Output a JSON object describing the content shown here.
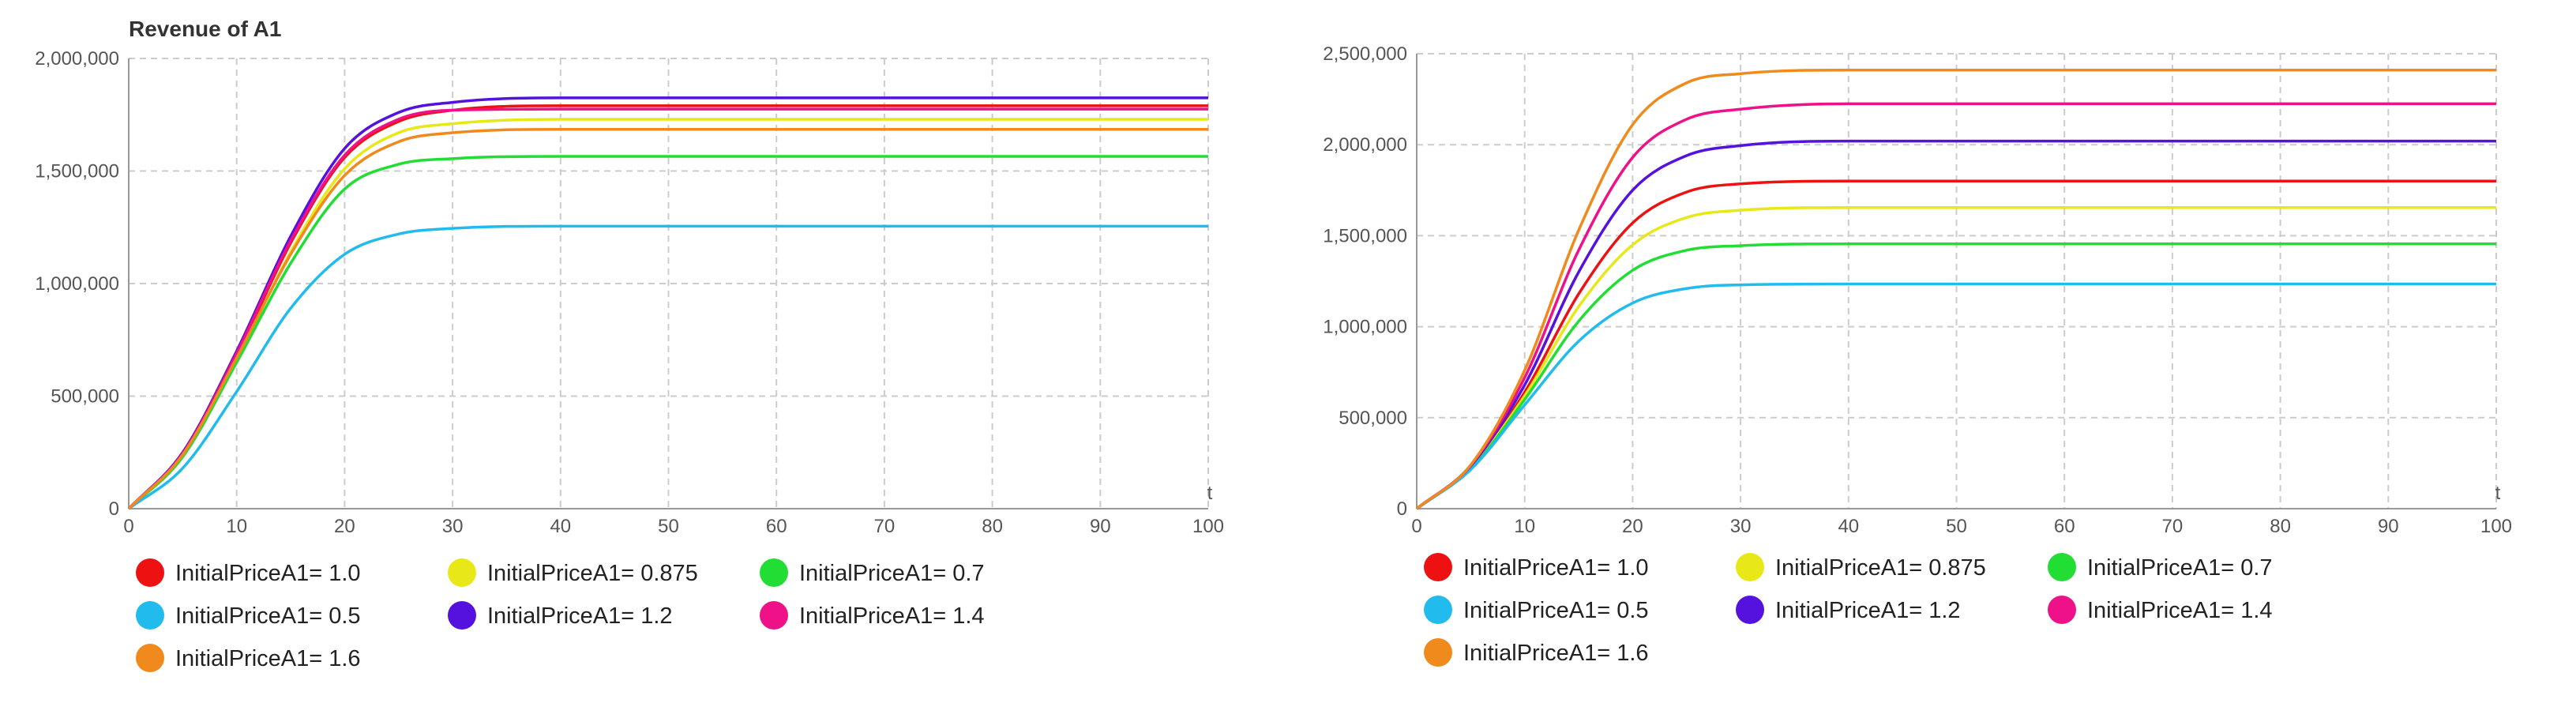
{
  "chart_data": [
    {
      "type": "line",
      "title": "Revenue of A1",
      "xlabel": "t",
      "ylabel": "",
      "xlim": [
        0,
        100
      ],
      "ylim": [
        0,
        2000000
      ],
      "x_ticks": [
        0,
        10,
        20,
        30,
        40,
        50,
        60,
        70,
        80,
        90,
        100
      ],
      "y_ticks": [
        0,
        500000,
        1000000,
        1500000,
        2000000
      ],
      "y_tick_labels": [
        "0",
        "500,000",
        "1,000,000",
        "1,500,000",
        "2,000,000"
      ],
      "grid": true,
      "legend_position": "bottom",
      "x": [
        0,
        5,
        10,
        15,
        20,
        25,
        30,
        40,
        50,
        60,
        70,
        80,
        90,
        100
      ],
      "series": [
        {
          "name": "InitialPriceA1= 1.0",
          "color": "#ee1111",
          "values": [
            0,
            240000,
            680000,
            1180000,
            1560000,
            1720000,
            1770000,
            1790000,
            1790000,
            1790000,
            1790000,
            1790000,
            1790000,
            1790000
          ]
        },
        {
          "name": "InitialPriceA1= 0.875",
          "color": "#e8e818",
          "values": [
            0,
            235000,
            660000,
            1140000,
            1510000,
            1670000,
            1710000,
            1730000,
            1730000,
            1730000,
            1730000,
            1730000,
            1730000,
            1730000
          ]
        },
        {
          "name": "InitialPriceA1= 0.7",
          "color": "#22dd33",
          "values": [
            0,
            230000,
            650000,
            1090000,
            1420000,
            1530000,
            1555000,
            1565000,
            1565000,
            1565000,
            1565000,
            1565000,
            1565000,
            1565000
          ]
        },
        {
          "name": "InitialPriceA1= 0.5",
          "color": "#22bbee",
          "values": [
            0,
            180000,
            520000,
            890000,
            1130000,
            1220000,
            1245000,
            1255000,
            1255000,
            1255000,
            1255000,
            1255000,
            1255000,
            1255000
          ]
        },
        {
          "name": "InitialPriceA1= 1.2",
          "color": "#5511dd",
          "values": [
            0,
            250000,
            700000,
            1210000,
            1600000,
            1760000,
            1805000,
            1825000,
            1825000,
            1825000,
            1825000,
            1825000,
            1825000,
            1825000
          ]
        },
        {
          "name": "InitialPriceA1= 1.4",
          "color": "#ee1188",
          "values": [
            0,
            245000,
            690000,
            1190000,
            1570000,
            1730000,
            1770000,
            1775000,
            1775000,
            1775000,
            1775000,
            1775000,
            1775000,
            1775000
          ]
        },
        {
          "name": "InitialPriceA1= 1.6",
          "color": "#f08a1c",
          "values": [
            0,
            240000,
            670000,
            1130000,
            1480000,
            1630000,
            1670000,
            1685000,
            1685000,
            1685000,
            1685000,
            1685000,
            1685000,
            1685000
          ]
        }
      ]
    },
    {
      "type": "line",
      "title": "",
      "xlabel": "t",
      "ylabel": "",
      "xlim": [
        0,
        100
      ],
      "ylim": [
        0,
        2500000
      ],
      "x_ticks": [
        0,
        10,
        20,
        30,
        40,
        50,
        60,
        70,
        80,
        90,
        100
      ],
      "y_ticks": [
        0,
        500000,
        1000000,
        1500000,
        2000000,
        2500000
      ],
      "y_tick_labels": [
        "0",
        "500,000",
        "1,000,000",
        "1,500,000",
        "2,000,000",
        "2,500,000"
      ],
      "grid": true,
      "legend_position": "bottom",
      "x": [
        0,
        5,
        10,
        15,
        20,
        25,
        30,
        40,
        50,
        60,
        70,
        80,
        90,
        100
      ],
      "series": [
        {
          "name": "InitialPriceA1= 1.0",
          "color": "#ee1111",
          "values": [
            0,
            230000,
            640000,
            1180000,
            1570000,
            1740000,
            1785000,
            1800000,
            1800000,
            1800000,
            1800000,
            1800000,
            1800000,
            1800000
          ]
        },
        {
          "name": "InitialPriceA1= 0.875",
          "color": "#e8e818",
          "values": [
            0,
            225000,
            620000,
            1110000,
            1450000,
            1600000,
            1640000,
            1655000,
            1655000,
            1655000,
            1655000,
            1655000,
            1655000,
            1655000
          ]
        },
        {
          "name": "InitialPriceA1= 0.7",
          "color": "#22dd33",
          "values": [
            0,
            220000,
            600000,
            1030000,
            1310000,
            1420000,
            1445000,
            1455000,
            1455000,
            1455000,
            1455000,
            1455000,
            1455000,
            1455000
          ]
        },
        {
          "name": "InitialPriceA1= 0.5",
          "color": "#22bbee",
          "values": [
            0,
            215000,
            570000,
            920000,
            1130000,
            1210000,
            1230000,
            1235000,
            1235000,
            1235000,
            1235000,
            1235000,
            1235000,
            1235000
          ]
        },
        {
          "name": "InitialPriceA1= 1.2",
          "color": "#5511dd",
          "values": [
            0,
            235000,
            680000,
            1300000,
            1750000,
            1940000,
            1995000,
            2020000,
            2020000,
            2020000,
            2020000,
            2020000,
            2020000,
            2020000
          ]
        },
        {
          "name": "InitialPriceA1= 1.4",
          "color": "#ee1188",
          "values": [
            0,
            238000,
            720000,
            1420000,
            1930000,
            2140000,
            2195000,
            2225000,
            2225000,
            2225000,
            2225000,
            2225000,
            2225000,
            2225000
          ]
        },
        {
          "name": "InitialPriceA1= 1.6",
          "color": "#f08a1c",
          "values": [
            0,
            240000,
            760000,
            1530000,
            2110000,
            2340000,
            2390000,
            2410000,
            2410000,
            2410000,
            2410000,
            2410000,
            2410000,
            2410000
          ]
        }
      ]
    }
  ]
}
